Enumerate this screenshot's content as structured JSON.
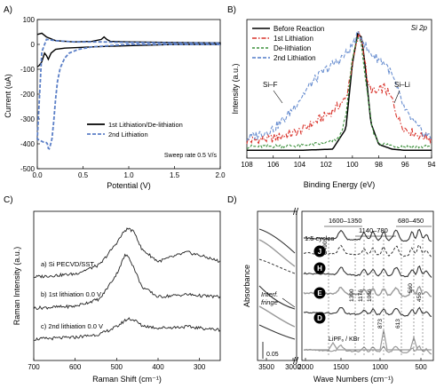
{
  "chart_data": [
    {
      "panel": "A)",
      "type": "line",
      "xlabel": "Potential (V)",
      "ylabel": "Current (uA)",
      "xlim": [
        0,
        2.0
      ],
      "ylim": [
        -500,
        100
      ],
      "xticks": [
        "0.0",
        "0.5",
        "1.0",
        "1.5",
        "2.0"
      ],
      "yticks": [
        "100",
        "0",
        "-100",
        "-200",
        "-300",
        "-400",
        "-500"
      ],
      "legend": [
        "1st Lithiation/De-lithiation",
        "2nd Lithiation"
      ],
      "legend_position": "bottom-right",
      "annotation": "Sweep rate 0.5 V/s",
      "series": [
        {
          "name": "1st Lithiation/De-lithiation",
          "color": "#000000",
          "x": [
            0.0,
            0.05,
            0.1,
            0.2,
            0.4,
            0.6,
            0.7,
            0.73,
            0.76,
            0.8,
            1.0,
            1.5,
            2.0,
            2.0,
            1.5,
            1.0,
            0.6,
            0.3,
            0.2,
            0.15,
            0.12,
            0.1,
            0.08,
            0.05,
            0.02,
            0.0
          ],
          "y": [
            40,
            45,
            30,
            15,
            10,
            12,
            20,
            30,
            20,
            12,
            10,
            8,
            6,
            0,
            0,
            -5,
            -10,
            -15,
            -20,
            -35,
            -60,
            -45,
            -35,
            -70,
            -85,
            -90
          ]
        },
        {
          "name": "2nd Lithiation",
          "color": "#5b7fc7",
          "x": [
            2.0,
            1.5,
            1.0,
            0.8,
            0.6,
            0.45,
            0.35,
            0.3,
            0.25,
            0.22,
            0.2,
            0.18,
            0.16,
            0.14,
            0.13,
            0.12,
            0.11,
            0.1,
            0.08,
            0.05,
            0.02,
            0.0,
            0.05,
            0.1,
            0.2,
            0.4,
            0.7,
            1.0,
            1.5,
            2.0
          ],
          "y": [
            0,
            0,
            0,
            -5,
            -10,
            -20,
            -35,
            -55,
            -95,
            -150,
            -220,
            -310,
            -380,
            -410,
            -420,
            -418,
            -400,
            -395,
            -395,
            -390,
            -385,
            -380,
            -30,
            20,
            15,
            10,
            10,
            8,
            6,
            5
          ]
        }
      ]
    },
    {
      "panel": "B)",
      "type": "line",
      "xlabel": "Binding Energy (eV)",
      "ylabel": "Intensity (a.u.)",
      "xlim": [
        108,
        94
      ],
      "xticks": [
        "108",
        "106",
        "104",
        "102",
        "100",
        "98",
        "96",
        "94"
      ],
      "title_inset": "Si 2p",
      "annotations": [
        "Si–F",
        "Si–Li"
      ],
      "legend": [
        "Before Reaction",
        "1st Lithiation",
        "De-lithiation",
        "2nd Lithiation"
      ],
      "legend_position": "top-left",
      "series": [
        {
          "name": "Before Reaction",
          "color": "#000000",
          "x": [
            108,
            104,
            101.5,
            100.5,
            100,
            99.6,
            99.3,
            99.0,
            98.6,
            98,
            97,
            96,
            94
          ],
          "y": [
            0.02,
            0.02,
            0.03,
            0.2,
            0.75,
            1.0,
            0.97,
            0.7,
            0.25,
            0.07,
            0.03,
            0.02,
            0.02
          ]
        },
        {
          "name": "1st Lithiation",
          "color": "#d9332b",
          "x": [
            108,
            106,
            104,
            102.5,
            101.5,
            100.5,
            100,
            99.5,
            99.2,
            98.8,
            98.2,
            97.6,
            97,
            96.5,
            96,
            95,
            94
          ],
          "y": [
            0.1,
            0.12,
            0.18,
            0.28,
            0.35,
            0.45,
            0.75,
            1.0,
            0.9,
            0.55,
            0.5,
            0.55,
            0.45,
            0.28,
            0.2,
            0.15,
            0.12
          ]
        },
        {
          "name": "De-lithiation",
          "color": "#3a8f3a",
          "x": [
            108,
            104,
            102,
            101,
            100.5,
            100,
            99.6,
            99.3,
            99,
            98.5,
            98,
            97,
            96,
            94
          ],
          "y": [
            0.05,
            0.06,
            0.08,
            0.12,
            0.3,
            0.8,
            0.98,
            0.9,
            0.6,
            0.2,
            0.08,
            0.06,
            0.05,
            0.05
          ]
        },
        {
          "name": "2nd Lithiation",
          "color": "#6a8fd0",
          "x": [
            108,
            106,
            105,
            104,
            103,
            102,
            101,
            100.3,
            99.8,
            99.5,
            99.2,
            98.8,
            98.2,
            97.5,
            97,
            96.5,
            96,
            95,
            94
          ],
          "y": [
            0.12,
            0.2,
            0.3,
            0.45,
            0.6,
            0.7,
            0.78,
            0.85,
            0.95,
            1.0,
            0.95,
            0.85,
            0.8,
            0.75,
            0.65,
            0.5,
            0.35,
            0.2,
            0.12
          ]
        }
      ]
    },
    {
      "panel": "C)",
      "type": "line",
      "xlabel": "Raman Shift (cm⁻¹)",
      "ylabel": "Raman Intensity (a.u.)",
      "xlim": [
        700,
        250
      ],
      "xticks": [
        "700",
        "600",
        "500",
        "400",
        "300"
      ],
      "series": [
        {
          "name": "a) Si PECVD/SST",
          "color": "#222222",
          "x": [
            700,
            600,
            540,
            500,
            480,
            470,
            455,
            440,
            400,
            330,
            300,
            250
          ],
          "y": [
            0.0,
            0.05,
            0.2,
            0.55,
            0.75,
            0.78,
            0.7,
            0.45,
            0.25,
            0.4,
            0.35,
            0.25
          ]
        },
        {
          "name": "b) 1st lithiation 0.0 V",
          "color": "#222222",
          "x": [
            700,
            600,
            540,
            500,
            480,
            470,
            455,
            440,
            400,
            330,
            300,
            250
          ],
          "y": [
            0.0,
            0.03,
            0.15,
            0.55,
            0.85,
            0.82,
            0.6,
            0.35,
            0.18,
            0.22,
            0.2,
            0.18
          ]
        },
        {
          "name": "c) 2nd lithiation 0.0 V",
          "color": "#222222",
          "x": [
            700,
            600,
            540,
            500,
            480,
            470,
            455,
            440,
            400,
            330,
            300,
            250
          ],
          "y": [
            0.0,
            0.03,
            0.08,
            0.2,
            0.3,
            0.33,
            0.3,
            0.22,
            0.18,
            0.2,
            0.18,
            0.15
          ]
        }
      ]
    },
    {
      "panel": "D)",
      "type": "line",
      "xlabel": "Wave Numbers (cm⁻¹)",
      "ylabel": "Absorbance",
      "xticks": [
        "3500",
        "3000",
        "2000",
        "1500",
        "1000",
        "500"
      ],
      "scale_label": "0.05",
      "band_labels": [
        "1600–1350",
        "1140–780",
        "680–450"
      ],
      "cycle_label": "1.5 cycles",
      "fringe_label": "Interf. fringe",
      "peak_labels": [
        "1490",
        "1300",
        "1176",
        "1066",
        "873",
        "613",
        "560",
        "456"
      ],
      "traces": [
        "J",
        "H",
        "E",
        "D"
      ],
      "reference": "LiPF₆ / KBr"
    }
  ]
}
